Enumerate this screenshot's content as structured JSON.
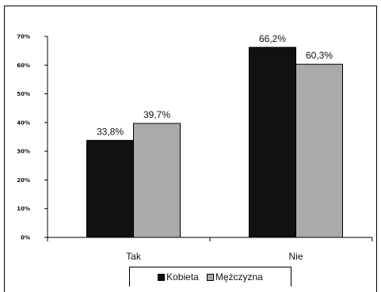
{
  "chart_data": {
    "type": "bar",
    "categories": [
      "Tak",
      "Nie"
    ],
    "series": [
      {
        "name": "Kobieta",
        "values": [
          33.8,
          66.2
        ],
        "labels": [
          "33,8%",
          "66,2%"
        ],
        "color": "#111111"
      },
      {
        "name": "Mężczyzna",
        "values": [
          39.7,
          60.3
        ],
        "labels": [
          "39,7%",
          "60,3%"
        ],
        "color": "#aaaaaa"
      }
    ],
    "ylim": [
      0,
      70
    ],
    "ytick_labels": [
      "0%",
      "10%",
      "20%",
      "30%",
      "40%",
      "50%",
      "60%",
      "70%"
    ],
    "grid": false,
    "legend_position": "bottom",
    "title": "",
    "xlabel": "",
    "ylabel": ""
  }
}
